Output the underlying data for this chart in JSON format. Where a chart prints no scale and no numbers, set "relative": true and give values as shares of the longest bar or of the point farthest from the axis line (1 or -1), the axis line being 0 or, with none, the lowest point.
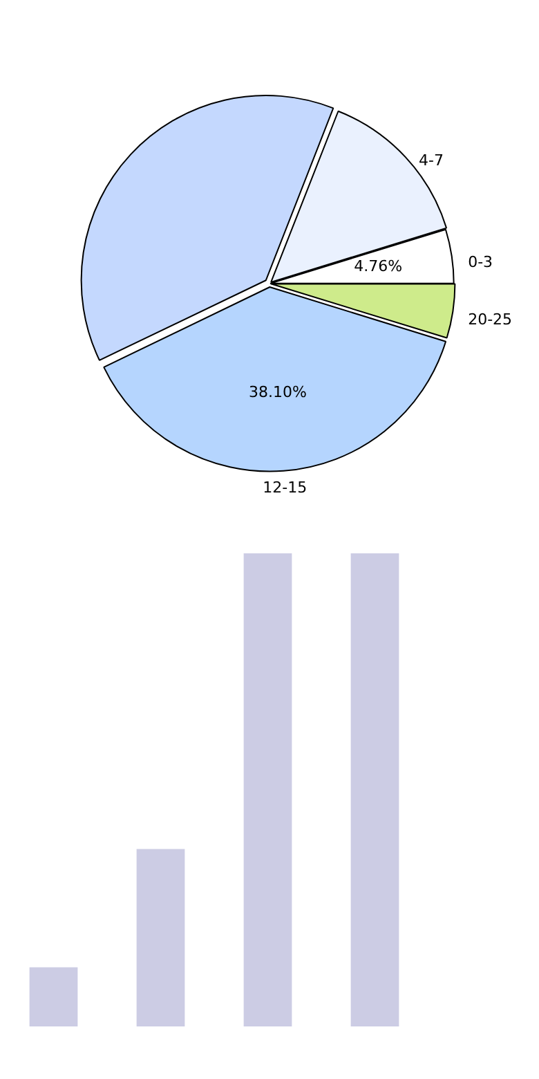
{
  "chart_data": [
    {
      "type": "pie",
      "categories": [
        "20-25",
        "12-15",
        null,
        "4-7",
        "0-3"
      ],
      "values": [
        4.76,
        38.1,
        38.1,
        14.28,
        4.76
      ],
      "colors": [
        "#ceeb8b",
        "#b5d5fe",
        "#c4d8fe",
        "#eaf1fe",
        "#ffffff"
      ],
      "value_labels": [
        null,
        "38.10%",
        null,
        null,
        "4.76%"
      ]
    },
    {
      "type": "bar",
      "relative": true,
      "categories": [
        null,
        null,
        null,
        null
      ],
      "values": [
        0.125,
        0.375,
        1,
        1
      ],
      "color": "#cccce4"
    }
  ]
}
